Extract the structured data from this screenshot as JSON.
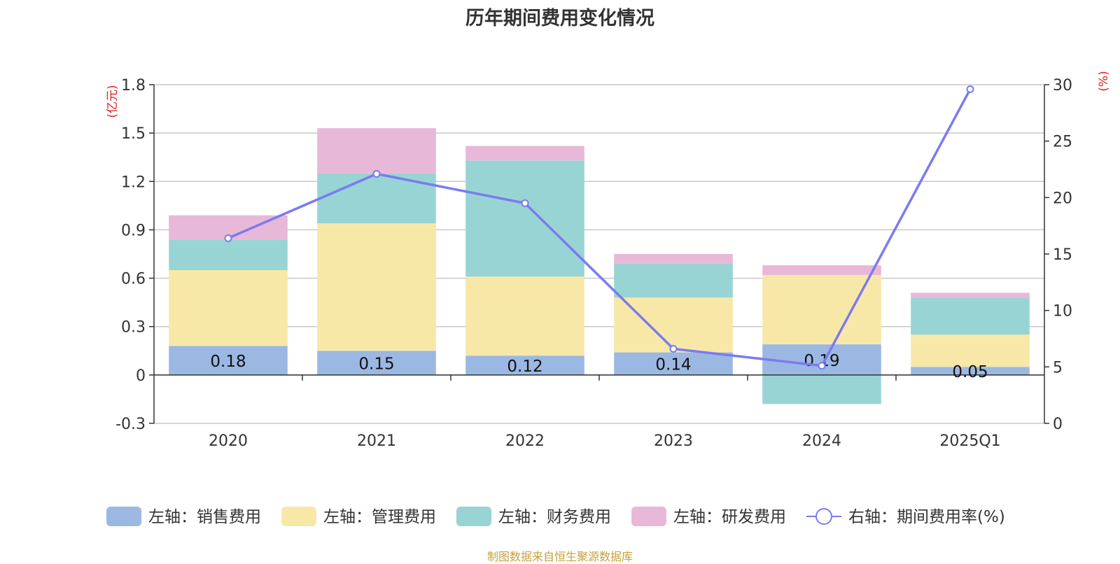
{
  "chart_data": {
    "type": "bar",
    "title": "历年期间费用变化情况",
    "categories": [
      "2020",
      "2021",
      "2022",
      "2023",
      "2024",
      "2025Q1"
    ],
    "y_left": {
      "unit_label": "(亿元)",
      "ylim": [
        -0.3,
        1.8
      ],
      "ticks": [
        "-0.3",
        "0",
        "0.3",
        "0.6",
        "0.9",
        "1.2",
        "1.5",
        "1.8"
      ]
    },
    "y_right": {
      "unit_label": "(%)",
      "ylim": [
        0,
        30
      ],
      "ticks": [
        "0",
        "5",
        "10",
        "15",
        "20",
        "25",
        "30"
      ]
    },
    "grid": true,
    "legend_position": "bottom",
    "series": [
      {
        "name": "左轴：销售费用",
        "kind": "bar",
        "axis": "left",
        "color": "#9bb8e3",
        "values": [
          0.18,
          0.15,
          0.12,
          0.14,
          0.19,
          0.05
        ],
        "value_labels": [
          "0.18",
          "0.15",
          "0.12",
          "0.14",
          "0.19",
          "0.05"
        ]
      },
      {
        "name": "左轴：管理费用",
        "kind": "bar",
        "axis": "left",
        "color": "#f8e8a8",
        "values": [
          0.47,
          0.79,
          0.49,
          0.34,
          0.43,
          0.2
        ]
      },
      {
        "name": "左轴：财务费用",
        "kind": "bar",
        "axis": "left",
        "color": "#98d4d4",
        "values": [
          0.19,
          0.31,
          0.72,
          0.21,
          -0.18,
          0.23
        ]
      },
      {
        "name": "左轴：研发费用",
        "kind": "bar",
        "axis": "left",
        "color": "#e8b8d8",
        "values": [
          0.15,
          0.28,
          0.09,
          0.06,
          0.06,
          0.03
        ]
      },
      {
        "name": "右轴：期间费用率(%)",
        "kind": "line",
        "axis": "right",
        "color": "#7b7bf0",
        "values": [
          16.4,
          22.1,
          19.5,
          6.6,
          5.1,
          29.6
        ]
      }
    ]
  },
  "source_note": "制图数据来自恒生聚源数据库"
}
